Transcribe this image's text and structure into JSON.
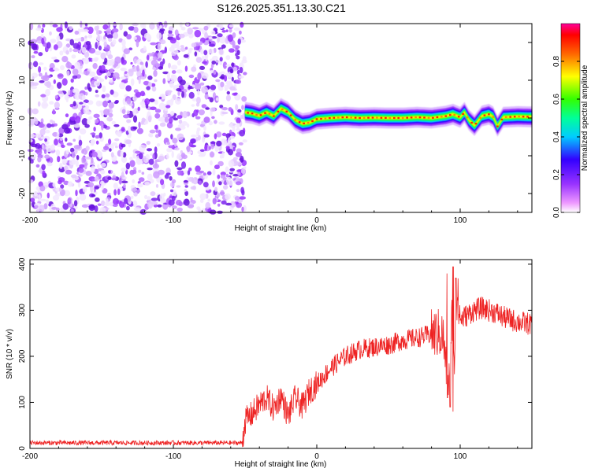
{
  "title": "S126.2025.351.13.30.C21",
  "chart_data": [
    {
      "type": "heatmap",
      "xlabel": "Height of straight line (km)",
      "ylabel": "Frequency (Hz)",
      "xlim": [
        -200,
        150
      ],
      "ylim": [
        -25,
        25
      ],
      "x_ticks": [
        -200,
        -100,
        0,
        100
      ],
      "y_ticks": [
        -20,
        -10,
        0,
        10,
        20
      ],
      "colorbar": {
        "label": "Normalized spectral amplitude",
        "range": [
          0,
          1
        ],
        "ticks": [
          "0.0",
          "0.2",
          "0.4",
          "0.6",
          "0.8"
        ],
        "colors": [
          "#ffffff",
          "#cc33ff",
          "#3300ff",
          "#00ffff",
          "#00ff00",
          "#ffff00",
          "#ff8800",
          "#ff0000",
          "#ff0099"
        ]
      },
      "noise_region_x": [
        -200,
        -50
      ],
      "ridge": {
        "x": [
          -50,
          -45,
          -40,
          -35,
          -30,
          -25,
          -20,
          -15,
          -10,
          -5,
          0,
          10,
          20,
          30,
          40,
          50,
          60,
          70,
          80,
          90,
          95,
          100,
          103,
          106,
          110,
          115,
          120,
          123,
          126,
          130,
          140,
          150
        ],
        "y": [
          1.5,
          1.2,
          0.6,
          1.5,
          0.5,
          2.5,
          1.5,
          -0.5,
          -1.5,
          -1.2,
          -0.3,
          0,
          0.2,
          0,
          0.1,
          0,
          0,
          0.2,
          0,
          0.5,
          1.0,
          0.2,
          1.5,
          -0.5,
          -2.0,
          0.5,
          1.0,
          0.3,
          -2.2,
          0.2,
          0.4,
          0.3
        ]
      }
    },
    {
      "type": "line",
      "xlabel": "Height of straight line (km)",
      "ylabel": "SNR (10 * v/v)",
      "xlim": [
        -200,
        150
      ],
      "ylim": [
        0,
        410
      ],
      "x_ticks": [
        -200,
        -100,
        0,
        100
      ],
      "y_ticks": [
        0,
        100,
        200,
        300,
        400
      ],
      "color": "#ee2222",
      "series": [
        {
          "x": [
            -200,
            -150,
            -100,
            -70,
            -52,
            -50,
            -45,
            -40,
            -35,
            -30,
            -25,
            -20,
            -15,
            -10,
            -5,
            0,
            10,
            20,
            30,
            40,
            50,
            60,
            70,
            80,
            85,
            88,
            90,
            92,
            94,
            96,
            98,
            100,
            105,
            110,
            115,
            120,
            125,
            130,
            135,
            140,
            145,
            150
          ],
          "y": [
            12,
            12,
            12,
            12,
            12,
            60,
            75,
            95,
            110,
            85,
            115,
            70,
            110,
            90,
            125,
            140,
            175,
            200,
            215,
            220,
            225,
            235,
            240,
            248,
            250,
            245,
            180,
            150,
            300,
            200,
            330,
            280,
            290,
            300,
            305,
            300,
            295,
            285,
            280,
            275,
            272,
            270
          ]
        }
      ],
      "spikes": [
        {
          "x": 91,
          "low": 110,
          "high": 380
        },
        {
          "x": 93,
          "low": 90,
          "high": 405
        },
        {
          "x": 95,
          "low": 80,
          "high": 395
        },
        {
          "x": 97,
          "low": 140,
          "high": 370
        }
      ]
    }
  ]
}
